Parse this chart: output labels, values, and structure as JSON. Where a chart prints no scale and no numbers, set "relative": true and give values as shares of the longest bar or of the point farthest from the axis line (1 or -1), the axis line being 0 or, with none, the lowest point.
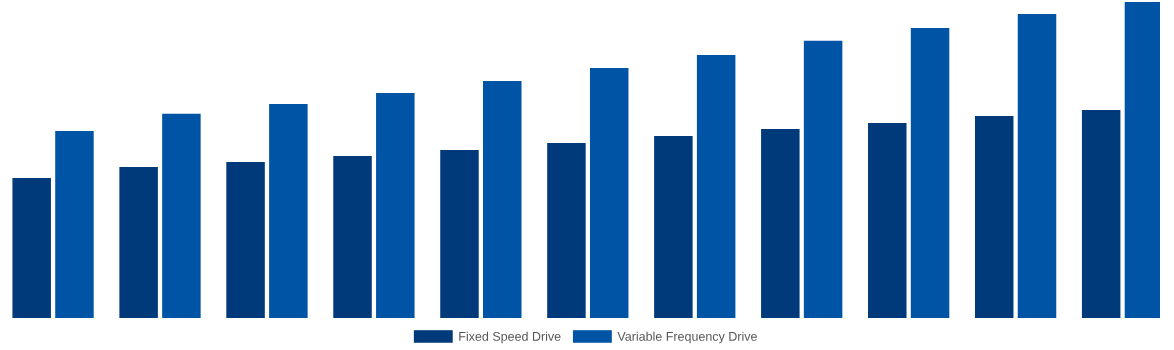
{
  "chart_data": {
    "type": "bar",
    "relative": true,
    "categories": [
      null,
      null,
      null,
      null,
      null,
      null,
      null,
      null,
      null,
      null,
      null
    ],
    "series": [
      {
        "name": "Fixed Speed Drive",
        "color": "#003a7a",
        "values": [
          0.443,
          0.478,
          0.494,
          0.513,
          0.532,
          0.554,
          0.576,
          0.598,
          0.617,
          0.639,
          0.658
        ]
      },
      {
        "name": "Variable Frequency Drive",
        "color": "#0054a6",
        "values": [
          0.592,
          0.646,
          0.677,
          0.712,
          0.75,
          0.791,
          0.832,
          0.877,
          0.918,
          0.962,
          1.0
        ]
      }
    ],
    "legend": "bottom",
    "grid": false
  }
}
